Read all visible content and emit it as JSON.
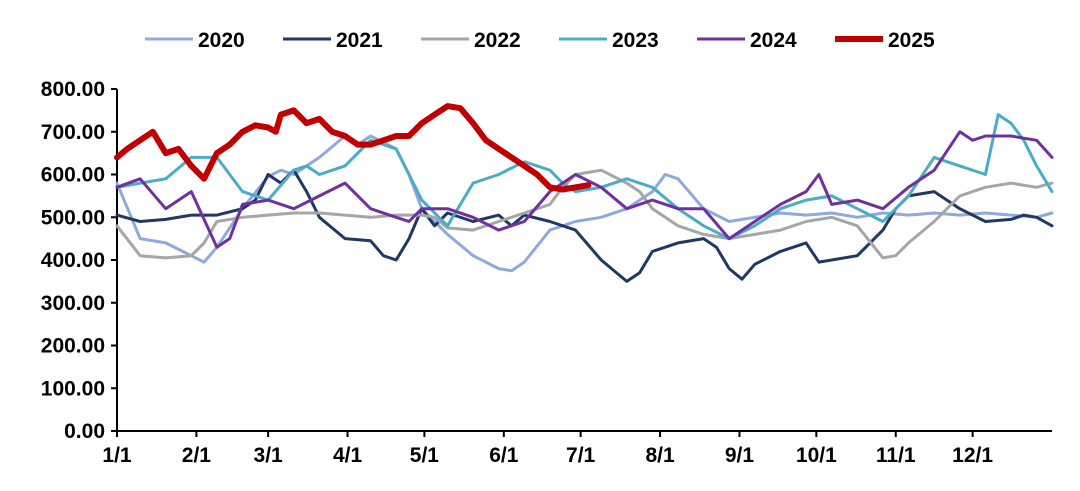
{
  "chart_data": {
    "type": "line",
    "title": "",
    "xlabel": "",
    "ylabel": "",
    "ylim": [
      0,
      800
    ],
    "y_ticks": [
      "0.00",
      "100.00",
      "200.00",
      "300.00",
      "400.00",
      "500.00",
      "600.00",
      "700.00",
      "800.00"
    ],
    "x_ticks": [
      "1/1",
      "2/1",
      "3/1",
      "4/1",
      "5/1",
      "6/1",
      "7/1",
      "8/1",
      "9/1",
      "10/1",
      "11/1",
      "12/1"
    ],
    "x_unit": "day of year (1 = Jan 1)",
    "grid": false,
    "legend_position": "top",
    "series": [
      {
        "name": "2020",
        "color": "#8EA9DB",
        "width": 3,
        "x": [
          1,
          10,
          20,
          30,
          35,
          40,
          50,
          60,
          65,
          70,
          80,
          90,
          95,
          100,
          110,
          115,
          120,
          130,
          140,
          150,
          155,
          160,
          170,
          180,
          190,
          200,
          210,
          215,
          220,
          230,
          240,
          250,
          260,
          270,
          280,
          290,
          300,
          310,
          320,
          330,
          340,
          350,
          360,
          366
        ],
        "y": [
          580,
          450,
          440,
          410,
          395,
          430,
          520,
          595,
          610,
          600,
          640,
          690,
          670,
          690,
          660,
          600,
          520,
          460,
          410,
          380,
          375,
          395,
          470,
          490,
          500,
          520,
          560,
          600,
          590,
          520,
          490,
          500,
          510,
          505,
          510,
          500,
          510,
          505,
          510,
          505,
          510,
          505,
          500,
          510
        ]
      },
      {
        "name": "2021",
        "color": "#1F3864",
        "width": 3,
        "x": [
          1,
          10,
          20,
          30,
          40,
          50,
          55,
          60,
          65,
          70,
          75,
          80,
          90,
          100,
          105,
          110,
          115,
          120,
          125,
          130,
          140,
          150,
          155,
          160,
          170,
          180,
          190,
          200,
          205,
          210,
          220,
          230,
          235,
          240,
          245,
          250,
          260,
          270,
          275,
          280,
          290,
          300,
          305,
          310,
          320,
          330,
          340,
          350,
          355,
          360,
          366
        ],
        "y": [
          505,
          490,
          495,
          505,
          505,
          520,
          540,
          600,
          580,
          610,
          560,
          500,
          450,
          445,
          410,
          400,
          450,
          520,
          480,
          510,
          490,
          505,
          480,
          505,
          490,
          470,
          400,
          350,
          370,
          420,
          440,
          450,
          430,
          380,
          355,
          390,
          420,
          440,
          395,
          400,
          410,
          470,
          520,
          550,
          560,
          520,
          490,
          495,
          505,
          500,
          480
        ]
      },
      {
        "name": "2022",
        "color": "#A6A6A6",
        "width": 3,
        "x": [
          1,
          10,
          20,
          30,
          35,
          40,
          50,
          60,
          70,
          80,
          90,
          100,
          110,
          120,
          125,
          130,
          140,
          150,
          160,
          170,
          175,
          180,
          190,
          200,
          205,
          210,
          220,
          230,
          240,
          250,
          260,
          270,
          280,
          290,
          300,
          305,
          310,
          320,
          330,
          340,
          350,
          360,
          366
        ],
        "y": [
          480,
          410,
          405,
          410,
          440,
          490,
          500,
          505,
          510,
          510,
          505,
          500,
          505,
          505,
          500,
          475,
          470,
          490,
          510,
          530,
          570,
          600,
          610,
          580,
          560,
          520,
          480,
          460,
          450,
          460,
          470,
          490,
          500,
          480,
          405,
          410,
          440,
          490,
          550,
          570,
          580,
          570,
          580
        ]
      },
      {
        "name": "2023",
        "color": "#4BACC6",
        "width": 3,
        "x": [
          1,
          10,
          20,
          30,
          40,
          45,
          50,
          60,
          70,
          75,
          80,
          90,
          100,
          110,
          120,
          130,
          140,
          150,
          160,
          170,
          175,
          180,
          190,
          200,
          210,
          220,
          230,
          240,
          250,
          260,
          270,
          280,
          290,
          300,
          310,
          320,
          330,
          340,
          345,
          350,
          355,
          360,
          366
        ],
        "y": [
          570,
          580,
          590,
          640,
          640,
          600,
          560,
          540,
          610,
          620,
          600,
          620,
          680,
          660,
          540,
          480,
          580,
          600,
          630,
          610,
          580,
          560,
          570,
          590,
          570,
          520,
          480,
          450,
          480,
          520,
          540,
          550,
          520,
          490,
          550,
          640,
          620,
          600,
          740,
          720,
          680,
          620,
          560
        ]
      },
      {
        "name": "2024",
        "color": "#7030A0",
        "width": 3,
        "x": [
          1,
          10,
          20,
          30,
          40,
          45,
          50,
          60,
          70,
          80,
          90,
          100,
          110,
          115,
          120,
          130,
          140,
          150,
          160,
          170,
          180,
          190,
          200,
          210,
          220,
          230,
          240,
          250,
          260,
          270,
          275,
          280,
          290,
          300,
          310,
          320,
          330,
          335,
          340,
          350,
          360,
          366
        ],
        "y": [
          570,
          590,
          520,
          560,
          430,
          450,
          530,
          540,
          520,
          550,
          580,
          520,
          500,
          490,
          520,
          520,
          500,
          470,
          490,
          560,
          600,
          570,
          520,
          540,
          520,
          520,
          450,
          490,
          530,
          560,
          600,
          530,
          540,
          520,
          570,
          610,
          700,
          680,
          690,
          690,
          680,
          640
        ]
      },
      {
        "name": "2025",
        "color": "#C00000",
        "width": 6,
        "x": [
          1,
          5,
          10,
          15,
          20,
          25,
          30,
          35,
          40,
          45,
          50,
          55,
          60,
          63,
          65,
          70,
          75,
          80,
          85,
          90,
          95,
          100,
          105,
          110,
          115,
          120,
          125,
          130,
          135,
          140,
          145,
          150,
          155,
          160,
          165,
          170,
          175,
          180,
          185
        ],
        "y": [
          640,
          660,
          680,
          700,
          650,
          660,
          620,
          590,
          650,
          670,
          700,
          715,
          710,
          700,
          740,
          750,
          720,
          730,
          700,
          690,
          670,
          670,
          680,
          690,
          690,
          720,
          740,
          760,
          755,
          720,
          680,
          660,
          640,
          620,
          600,
          570,
          565,
          570,
          575
        ]
      }
    ]
  }
}
